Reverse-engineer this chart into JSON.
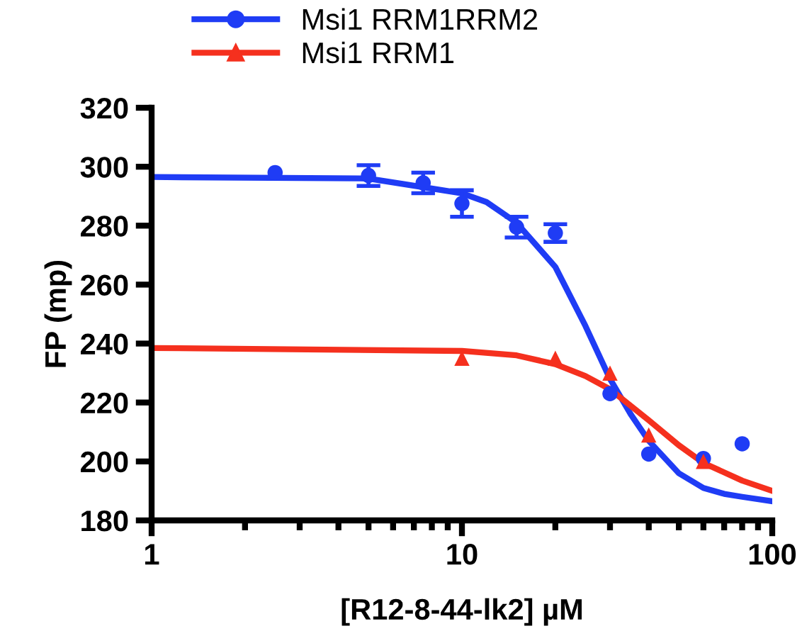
{
  "chart_data": {
    "type": "scatter",
    "xlabel": "[R12-8-44-lk2] µM",
    "ylabel": "FP (mp)",
    "log": "x",
    "xlim": [
      1,
      100
    ],
    "xticks": [
      1,
      10,
      100
    ],
    "ylim": [
      180,
      320
    ],
    "yticks": [
      180,
      200,
      220,
      240,
      260,
      280,
      300,
      320
    ],
    "grid": false,
    "legend": "top",
    "series": [
      {
        "name": "Msi1 RRM1RRM2",
        "color": "#1f3cf5",
        "marker": "circle",
        "x": [
          2.5,
          5,
          7.5,
          10,
          15,
          20,
          30,
          40,
          60,
          80
        ],
        "values": [
          298,
          297,
          294.5,
          287.5,
          279.5,
          277.5,
          223,
          202.5,
          201,
          206
        ],
        "errors": [
          null,
          3.5,
          3.5,
          4.5,
          3.5,
          3,
          null,
          null,
          null,
          null
        ]
      },
      {
        "name": "Msi1 RRM1",
        "color": "#f5301e",
        "marker": "triangle",
        "x": [
          10,
          20,
          30,
          40,
          60
        ],
        "values": [
          235,
          235,
          230,
          209,
          200
        ]
      },
      {
        "type": "line",
        "color": "#1f3cf5",
        "marker": "none",
        "x": [
          1,
          5,
          10,
          12,
          15,
          20,
          25,
          30,
          35,
          40,
          50,
          60,
          70,
          80,
          100
        ],
        "values": [
          296.5,
          296,
          291,
          288,
          281,
          266,
          246,
          228,
          216,
          207,
          196,
          191,
          189,
          188,
          186.5
        ]
      },
      {
        "type": "line",
        "color": "#f5301e",
        "marker": "none",
        "x": [
          1,
          10,
          15,
          20,
          25,
          30,
          40,
          50,
          60,
          80,
          100
        ],
        "values": [
          238.5,
          237.5,
          236,
          233,
          229,
          224.5,
          214,
          205.5,
          199.5,
          193.5,
          190
        ]
      }
    ]
  }
}
